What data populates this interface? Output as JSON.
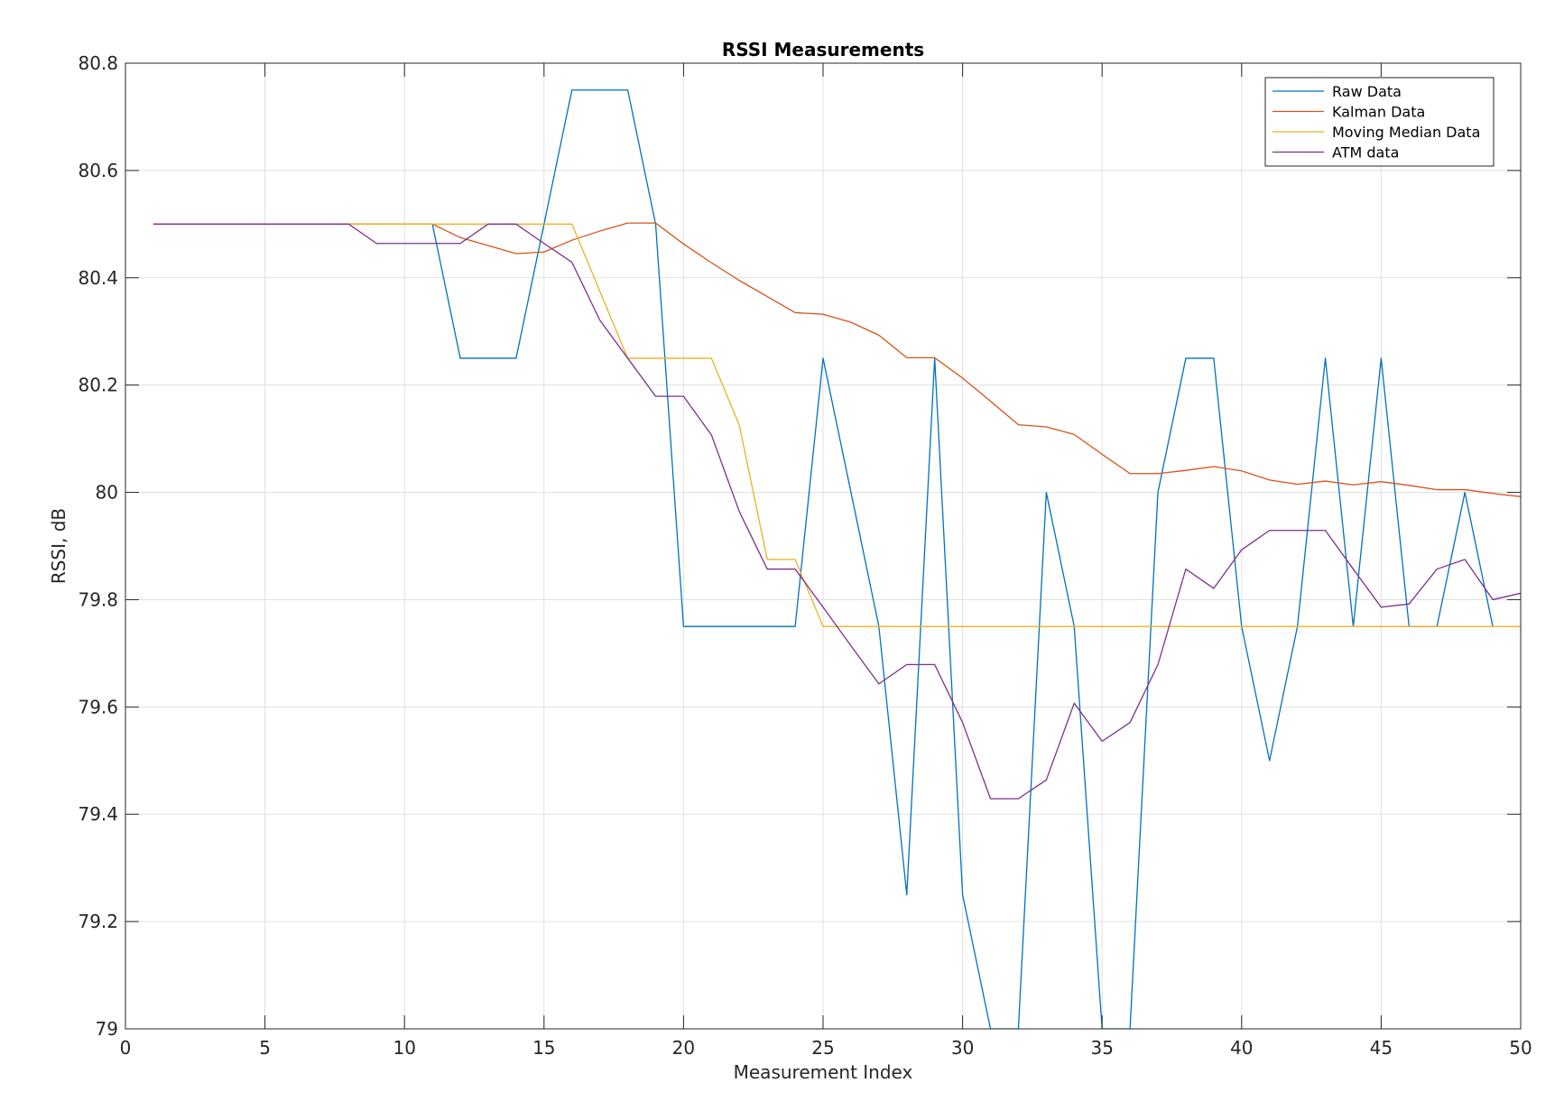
{
  "chart_data": {
    "type": "line",
    "title": "RSSI Measurements",
    "xlabel": "Measurement Index",
    "ylabel": "RSSI, dB",
    "xlim": [
      0,
      50
    ],
    "ylim": [
      79,
      80.8
    ],
    "xticks": [
      0,
      5,
      10,
      15,
      20,
      25,
      30,
      35,
      40,
      45,
      50
    ],
    "yticks": [
      79,
      79.2,
      79.4,
      79.6,
      79.8,
      80,
      80.2,
      80.4,
      80.6,
      80.8
    ],
    "xtick_labels": [
      "0",
      "5",
      "10",
      "15",
      "20",
      "25",
      "30",
      "35",
      "40",
      "45",
      "50"
    ],
    "ytick_labels": [
      "79",
      "79.2",
      "79.4",
      "79.6",
      "79.8",
      "80",
      "80.2",
      "80.4",
      "80.6",
      "80.8"
    ],
    "grid": true,
    "legend_position": "top-right",
    "x": [
      1,
      2,
      3,
      4,
      5,
      6,
      7,
      8,
      9,
      10,
      11,
      12,
      13,
      14,
      15,
      16,
      17,
      18,
      19,
      20,
      21,
      22,
      23,
      24,
      25,
      26,
      27,
      28,
      29,
      30,
      31,
      32,
      33,
      34,
      35,
      36,
      37,
      38,
      39,
      40,
      41,
      42,
      43,
      44,
      45,
      46,
      47,
      48,
      49,
      50
    ],
    "series": [
      {
        "name": "Raw Data",
        "color": "#0072BD",
        "values": [
          80.5,
          80.5,
          80.5,
          80.5,
          80.5,
          80.5,
          80.5,
          80.5,
          80.5,
          80.5,
          80.5,
          80.25,
          80.25,
          80.25,
          80.5,
          80.75,
          80.75,
          80.75,
          80.5,
          79.75,
          79.75,
          79.75,
          79.75,
          79.75,
          80.25,
          80.0,
          79.75,
          79.25,
          80.25,
          79.25,
          79.0,
          79.0,
          80.0,
          79.75,
          79.0,
          79.0,
          80.0,
          80.25,
          80.25,
          79.75,
          79.5,
          79.75,
          80.25,
          79.75,
          80.25,
          79.75,
          79.75,
          80.0,
          79.75,
          null
        ]
      },
      {
        "name": "Kalman Data",
        "color": "#D95319",
        "values": [
          80.5,
          80.5,
          80.5,
          80.5,
          80.5,
          80.5,
          80.5,
          80.5,
          80.5,
          80.5,
          80.5,
          80.475,
          80.46,
          80.445,
          80.448,
          80.47,
          80.487,
          80.502,
          80.502,
          80.463,
          80.428,
          80.395,
          80.365,
          80.335,
          80.332,
          80.317,
          80.293,
          80.251,
          80.251,
          80.213,
          80.17,
          80.126,
          80.122,
          80.108,
          80.071,
          80.035,
          80.035,
          80.041,
          80.048,
          80.04,
          80.023,
          80.015,
          80.021,
          80.014,
          80.02,
          80.013,
          80.005,
          80.005,
          79.998,
          79.992
        ]
      },
      {
        "name": "Moving Median Data",
        "color": "#EDB120",
        "values": [
          80.5,
          80.5,
          80.5,
          80.5,
          80.5,
          80.5,
          80.5,
          80.5,
          80.5,
          80.5,
          80.5,
          80.5,
          80.5,
          80.5,
          80.5,
          80.5,
          80.375,
          80.25,
          80.25,
          80.25,
          80.25,
          80.125,
          79.875,
          79.875,
          79.75,
          79.75,
          79.75,
          79.75,
          79.75,
          79.75,
          79.75,
          79.75,
          79.75,
          79.75,
          79.75,
          79.75,
          79.75,
          79.75,
          79.75,
          79.75,
          79.75,
          79.75,
          79.75,
          79.75,
          79.75,
          79.75,
          79.75,
          79.75,
          79.75,
          79.75
        ]
      },
      {
        "name": "ATM data",
        "color": "#7E2F8E",
        "values": [
          80.5,
          80.5,
          80.5,
          80.5,
          80.5,
          80.5,
          80.5,
          80.5,
          80.464,
          80.464,
          80.464,
          80.464,
          80.5,
          80.5,
          80.464,
          80.429,
          80.321,
          80.25,
          80.179,
          80.179,
          80.107,
          79.964,
          79.857,
          79.857,
          79.786,
          79.714,
          79.643,
          79.679,
          79.679,
          79.571,
          79.429,
          79.429,
          79.464,
          79.607,
          79.536,
          79.571,
          79.679,
          79.857,
          79.821,
          79.893,
          79.929,
          79.929,
          79.929,
          79.857,
          79.786,
          79.792,
          79.857,
          79.875,
          79.8,
          79.812
        ]
      }
    ]
  }
}
